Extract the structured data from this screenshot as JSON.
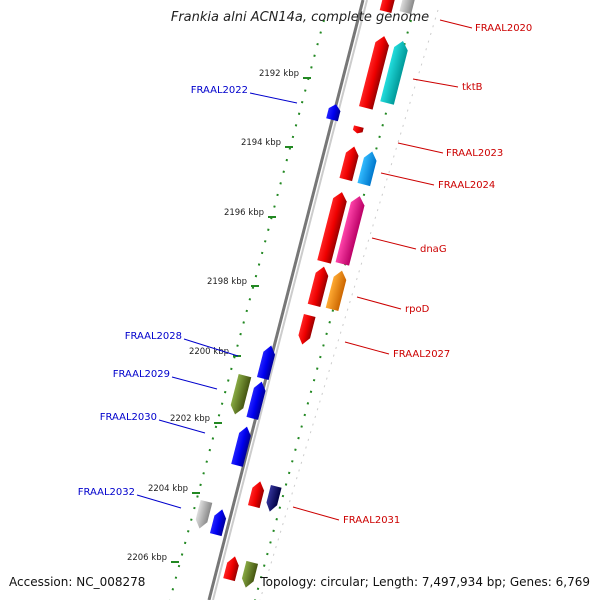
{
  "title": "Frankia alni ACN14a, complete genome",
  "footer": {
    "accession": "Accession: NC_008278",
    "summary": "Topology: circular; Length: 7,497,934 bp; Genes: 6,769"
  },
  "ticks": [
    {
      "label": "2192 kbp",
      "kbp": 2192
    },
    {
      "label": "2194 kbp",
      "kbp": 2194
    },
    {
      "label": "2196 kbp",
      "kbp": 2196
    },
    {
      "label": "2198 kbp",
      "kbp": 2198
    },
    {
      "label": "2200 kbp",
      "kbp": 2200
    },
    {
      "label": "2202 kbp",
      "kbp": 2202
    },
    {
      "label": "2204 kbp",
      "kbp": 2204
    },
    {
      "label": "2206 kbp",
      "kbp": 2206
    }
  ],
  "gene_labels": [
    {
      "name": "FRAAL2020",
      "color": "#cc0000"
    },
    {
      "name": "tktB",
      "color": "#cc0000"
    },
    {
      "name": "FRAAL2022",
      "color": "#0000cc"
    },
    {
      "name": "FRAAL2023",
      "color": "#cc0000"
    },
    {
      "name": "FRAAL2024",
      "color": "#cc0000"
    },
    {
      "name": "dnaG",
      "color": "#cc0000"
    },
    {
      "name": "rpoD",
      "color": "#cc0000"
    },
    {
      "name": "FRAAL2027",
      "color": "#cc0000"
    },
    {
      "name": "FRAAL2028",
      "color": "#0000cc"
    },
    {
      "name": "FRAAL2029",
      "color": "#0000cc"
    },
    {
      "name": "FRAAL2030",
      "color": "#0000cc"
    },
    {
      "name": "FRAAL2031",
      "color": "#cc0000"
    },
    {
      "name": "FRAAL2032",
      "color": "#0000cc"
    }
  ],
  "colors": {
    "forward": "#ee0000",
    "reverse": "#0000ee",
    "cyan": "#00cccc",
    "skyblue": "#00aaff",
    "magenta": "#ee1188",
    "orange": "#ff8800",
    "olive": "#668822",
    "grey": "#aaaaaa",
    "navy": "#000066",
    "backbone": "#888888",
    "tick": "#228822"
  }
}
